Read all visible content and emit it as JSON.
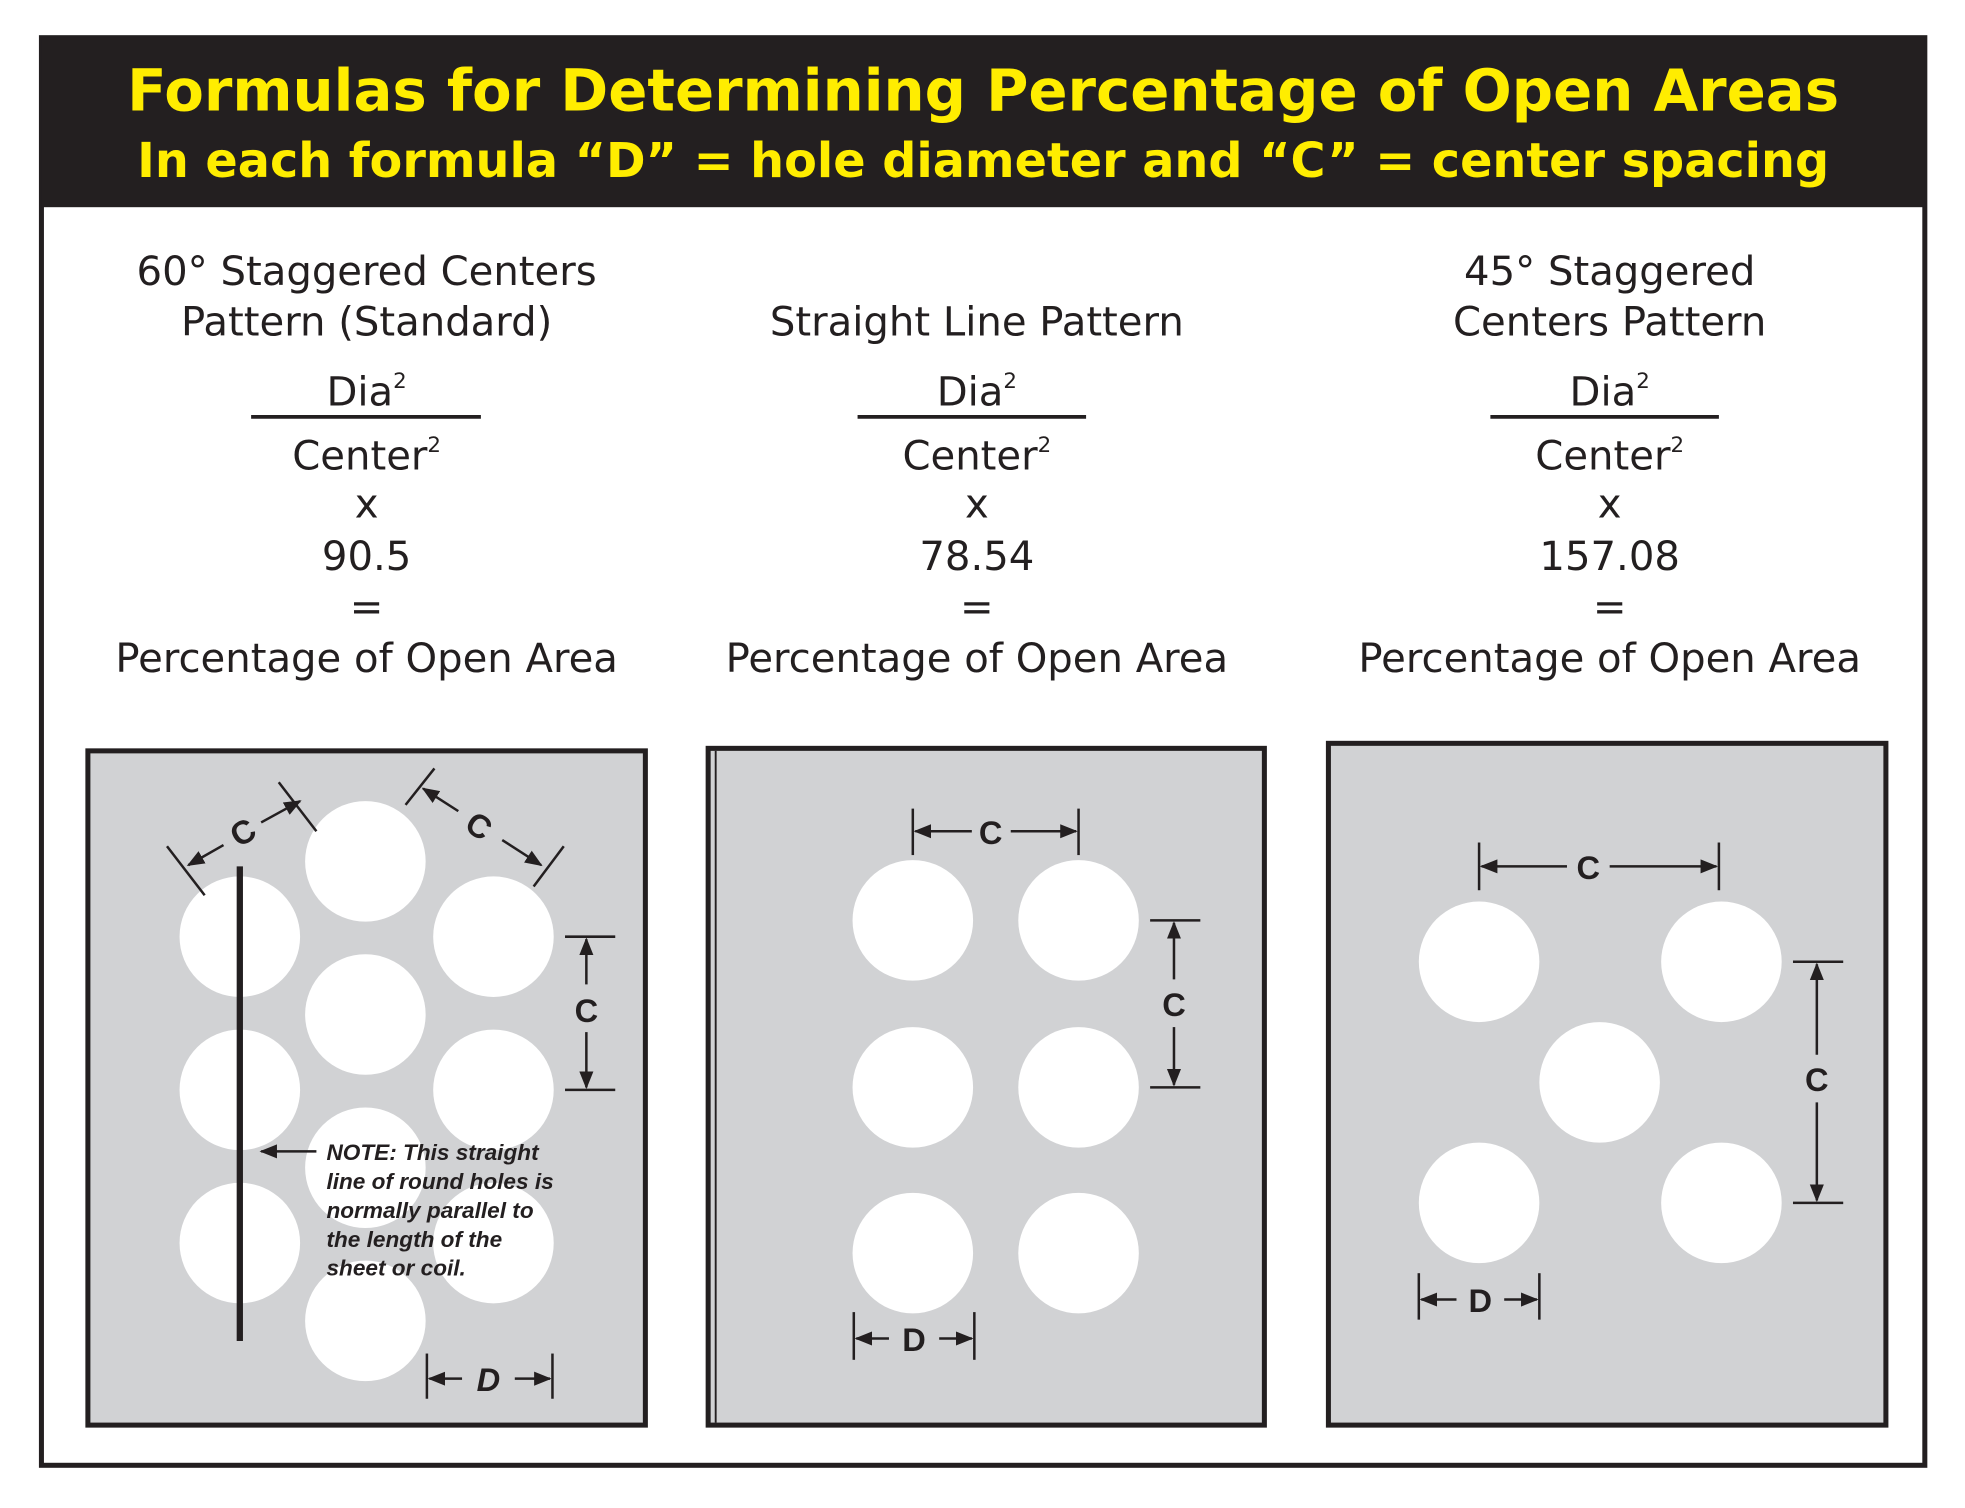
{
  "header": {
    "title": "Formulas for Determining Percentage of Open Areas",
    "subtitle": "In each formula “D” = hole diameter and “C” = center spacing",
    "text_color": "#FFED00",
    "background": "#231f20"
  },
  "columns": [
    {
      "heading_lines": [
        "60° Staggered Centers",
        "Pattern (Standard)"
      ],
      "numerator": "Dia",
      "denominator": "Center",
      "exponent": "2",
      "times": "x",
      "factor": "90.5",
      "equals": "=",
      "result": "Percentage of Open Area",
      "labels": {
        "c": "C",
        "d": "D"
      },
      "note_lines": [
        "NOTE: This straight",
        "line of round holes is",
        "normally parallel to",
        "the length of the",
        "sheet or coil."
      ]
    },
    {
      "heading_lines": [
        "Straight Line Pattern"
      ],
      "numerator": "Dia",
      "denominator": "Center",
      "exponent": "2",
      "times": "x",
      "factor": "78.54",
      "equals": "=",
      "result": "Percentage of Open Area",
      "labels": {
        "c": "C",
        "d": "D"
      }
    },
    {
      "heading_lines": [
        "45° Staggered",
        "Centers Pattern"
      ],
      "numerator": "Dia",
      "denominator": "Center",
      "exponent": "2",
      "times": "x",
      "factor": "157.08",
      "equals": "=",
      "result": "Percentage of Open Area",
      "labels": {
        "c": "C",
        "d": "D"
      }
    }
  ],
  "colors": {
    "panel": "#d1d2d4",
    "ink": "#231f20",
    "hole": "#ffffff"
  }
}
